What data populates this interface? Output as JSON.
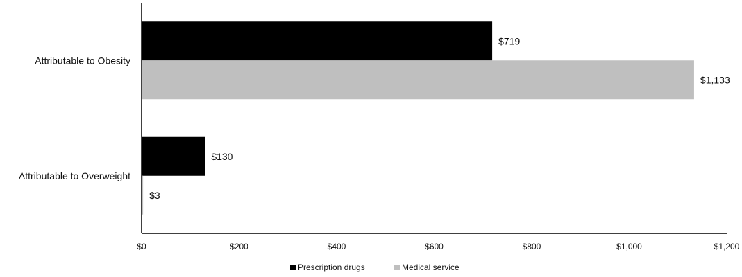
{
  "chart_data": {
    "type": "bar",
    "orientation": "horizontal",
    "categories": [
      "Attributable to Obesity",
      "Attributable to Overweight"
    ],
    "series": [
      {
        "name": "Prescription drugs",
        "color": "#000000",
        "values": [
          719,
          130
        ],
        "labels": [
          "$719",
          "$130"
        ]
      },
      {
        "name": "Medical service",
        "color": "#bfbfbf",
        "values": [
          1133,
          3
        ],
        "labels": [
          "$1,133",
          "$3"
        ]
      }
    ],
    "xlim": [
      0,
      1200
    ],
    "xticks": [
      0,
      200,
      400,
      600,
      800,
      1000,
      1200
    ],
    "xtick_labels": [
      "$0",
      "$200",
      "$400",
      "$600",
      "$800",
      "$1,000",
      "$1,200"
    ],
    "grid": false,
    "legend_position": "bottom"
  }
}
